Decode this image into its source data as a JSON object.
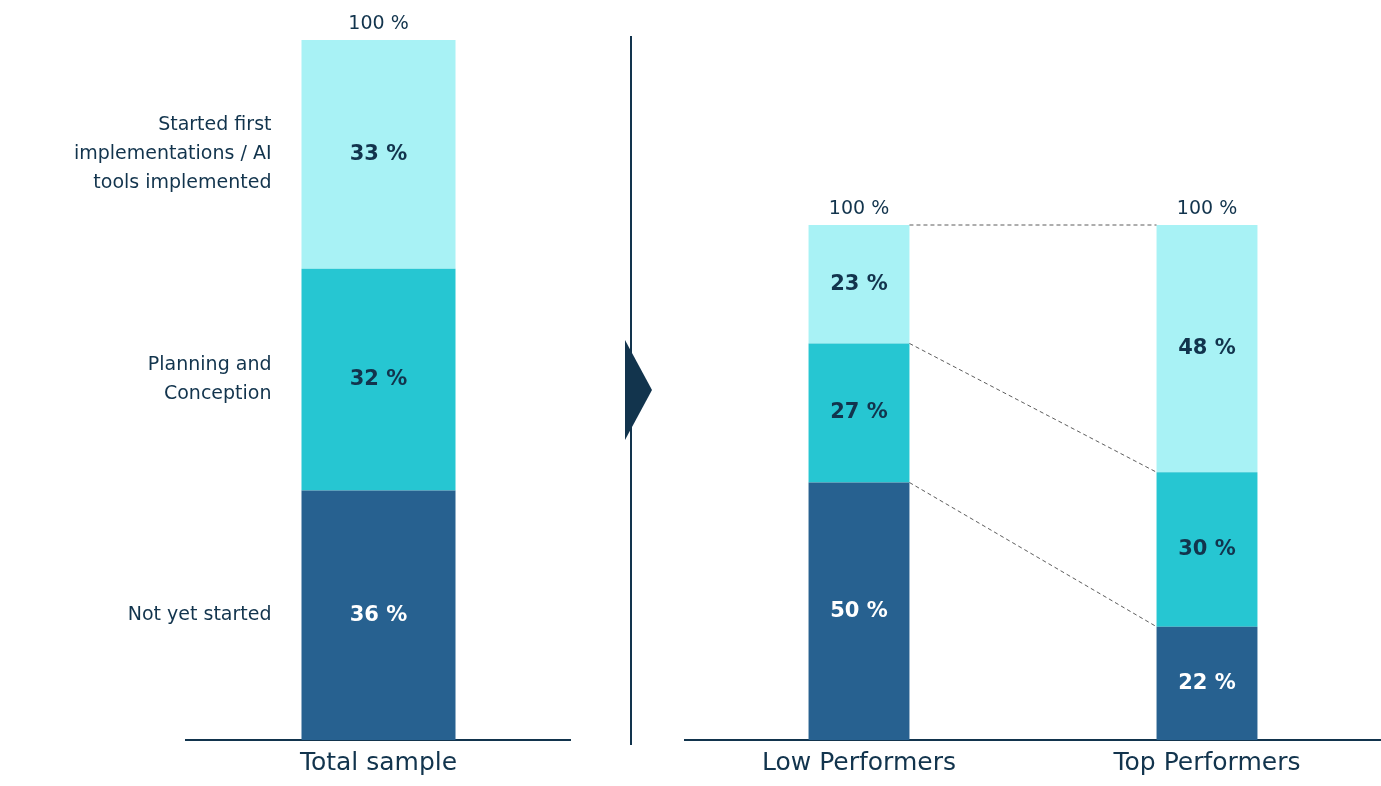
{
  "chart_data": [
    {
      "type": "bar",
      "stacked": true,
      "categories": [
        "Total sample"
      ],
      "tick_labels": "x",
      "grid": false,
      "legend": false,
      "totals": [
        "100 %"
      ],
      "series": [
        {
          "name": "Not yet started",
          "color": "#276190",
          "values": [
            36
          ],
          "value_labels": [
            "36 %"
          ]
        },
        {
          "name": "Planning and Conception",
          "color": "#26c6d2",
          "values": [
            32
          ],
          "value_labels": [
            "32 %"
          ]
        },
        {
          "name": "Started first implementations / AI tools implemented",
          "color": "#a8f2f5",
          "values": [
            33
          ],
          "value_labels": [
            "33 %"
          ]
        }
      ]
    },
    {
      "type": "bar",
      "stacked": true,
      "categories": [
        "Low Performers",
        "Top Performers"
      ],
      "tick_labels": "x",
      "grid": false,
      "legend": false,
      "totals": [
        "100 %",
        "100 %"
      ],
      "series": [
        {
          "color": "#276190",
          "values": [
            50,
            22
          ],
          "value_labels": [
            "50 %",
            "22 %"
          ]
        },
        {
          "color": "#26c6d2",
          "values": [
            27,
            30
          ],
          "value_labels": [
            "27 %",
            "30 %"
          ]
        },
        {
          "color": "#a8f2f5",
          "values": [
            23,
            48
          ],
          "value_labels": [
            "23 %",
            "48 %"
          ]
        }
      ]
    }
  ]
}
